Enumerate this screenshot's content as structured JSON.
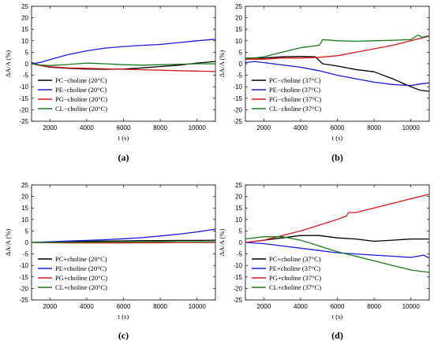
{
  "chart_data": [
    {
      "type": "line",
      "panel_label": "(a)",
      "xlabel": "t (s)",
      "ylabel": "ΔA/A (%)",
      "xlim": [
        1000,
        11000
      ],
      "ylim": [
        -25,
        25
      ],
      "xticks": [
        2000,
        4000,
        6000,
        8000,
        10000
      ],
      "yticks": [
        -25,
        -20,
        -15,
        -10,
        -5,
        0,
        5,
        10,
        15,
        20,
        25
      ],
      "legend_position": "bottom-left",
      "series": [
        {
          "name": "PC−choline (20°C)",
          "color": "#000000",
          "x": [
            1000,
            1500,
            2000,
            3000,
            4000,
            5000,
            6000,
            7000,
            8000,
            9000,
            10000,
            11000
          ],
          "y": [
            0.5,
            -0.8,
            -1.5,
            -2.0,
            -2.3,
            -2.4,
            -2.3,
            -1.8,
            -1.2,
            -0.6,
            0.3,
            1.0
          ]
        },
        {
          "name": "PE−choline (20°C)",
          "color": "#1a1adc",
          "x": [
            1000,
            1500,
            2000,
            3000,
            4000,
            5000,
            6000,
            7000,
            8000,
            9000,
            10000,
            11000
          ],
          "y": [
            0.0,
            0.6,
            1.8,
            4.0,
            5.6,
            6.8,
            7.5,
            8.0,
            8.4,
            9.2,
            10.0,
            10.7
          ]
        },
        {
          "name": "PG−choline (20°C)",
          "color": "#d81818",
          "x": [
            1000,
            1500,
            2000,
            3000,
            4000,
            5000,
            6000,
            7000,
            8000,
            9000,
            10000,
            11000
          ],
          "y": [
            0.0,
            -0.8,
            -1.3,
            -1.8,
            -2.0,
            -2.2,
            -2.4,
            -2.6,
            -2.8,
            -3.0,
            -3.2,
            -3.4
          ]
        },
        {
          "name": "CL−choline (20°C)",
          "color": "#1a7a1a",
          "x": [
            1000,
            1500,
            2000,
            3000,
            4000,
            5000,
            6000,
            7000,
            8000,
            9000,
            10000,
            11000
          ],
          "y": [
            0.0,
            -0.5,
            -0.8,
            -0.3,
            0.3,
            0.0,
            -0.4,
            -0.6,
            -0.4,
            -0.2,
            0.0,
            0.0
          ]
        }
      ]
    },
    {
      "type": "line",
      "panel_label": "(b)",
      "xlabel": "t (s)",
      "ylabel": "ΔA/A (%)",
      "xlim": [
        1000,
        11000
      ],
      "ylim": [
        -25,
        25
      ],
      "xticks": [
        2000,
        4000,
        6000,
        8000,
        10000
      ],
      "yticks": [
        -25,
        -20,
        -15,
        -10,
        -5,
        0,
        5,
        10,
        15,
        20,
        25
      ],
      "legend_position": "bottom-left",
      "series": [
        {
          "name": "PC−choline (37°C)",
          "color": "#000000",
          "x": [
            1000,
            1500,
            2000,
            3000,
            4000,
            4800,
            5200,
            6000,
            7000,
            8000,
            9000,
            10000,
            10500,
            11000
          ],
          "y": [
            2.0,
            2.5,
            2.5,
            3.0,
            3.2,
            3.0,
            0.0,
            -1.0,
            -2.5,
            -3.5,
            -6.5,
            -10.0,
            -11.5,
            -12.0
          ]
        },
        {
          "name": "PE−choline (37°C)",
          "color": "#1a1adc",
          "x": [
            1000,
            1500,
            2000,
            3000,
            4000,
            5000,
            6000,
            7000,
            8000,
            9000,
            10000,
            10500,
            11000
          ],
          "y": [
            0.5,
            1.0,
            0.5,
            -0.5,
            -1.5,
            -3.0,
            -5.0,
            -6.5,
            -8.0,
            -9.0,
            -9.5,
            -8.8,
            -8.3
          ]
        },
        {
          "name": "PG−choline (37°C)",
          "color": "#d81818",
          "x": [
            1000,
            1500,
            2000,
            3000,
            4000,
            5000,
            6000,
            7000,
            8000,
            9000,
            10000,
            11000
          ],
          "y": [
            2.0,
            2.0,
            2.0,
            2.5,
            2.5,
            2.8,
            3.5,
            5.0,
            6.5,
            8.0,
            10.0,
            12.0
          ]
        },
        {
          "name": "CL−choline (37°C)",
          "color": "#1a7a1a",
          "x": [
            1000,
            1500,
            2000,
            3000,
            4000,
            5000,
            5100,
            5200,
            6000,
            7000,
            8000,
            9000,
            10000,
            10400,
            10600,
            11000
          ],
          "y": [
            2.5,
            2.5,
            3.0,
            5.0,
            7.0,
            8.0,
            9.0,
            10.5,
            10.0,
            9.8,
            10.0,
            10.2,
            10.5,
            12.5,
            11.5,
            12.2
          ]
        }
      ]
    },
    {
      "type": "line",
      "panel_label": "(c)",
      "xlabel": "t (s)",
      "ylabel": "ΔA/A (%)",
      "xlim": [
        1000,
        11000
      ],
      "ylim": [
        -25,
        25
      ],
      "xticks": [
        2000,
        4000,
        6000,
        8000,
        10000
      ],
      "yticks": [
        -25,
        -20,
        -15,
        -10,
        -5,
        0,
        5,
        10,
        15,
        20,
        25
      ],
      "legend_position": "bottom-left",
      "series": [
        {
          "name": "PC+choline (20°C)",
          "color": "#000000",
          "x": [
            1000,
            2000,
            3000,
            4000,
            5000,
            6000,
            7000,
            8000,
            9000,
            10000,
            11000
          ],
          "y": [
            0.0,
            0.2,
            0.4,
            0.5,
            0.6,
            0.7,
            0.8,
            0.8,
            0.9,
            0.9,
            1.0
          ]
        },
        {
          "name": "PE+choline (20°C)",
          "color": "#1a1adc",
          "x": [
            1000,
            2000,
            3000,
            4000,
            5000,
            6000,
            7000,
            8000,
            9000,
            10000,
            11000
          ],
          "y": [
            0.0,
            0.3,
            0.6,
            0.9,
            1.2,
            1.6,
            2.1,
            2.8,
            3.6,
            4.6,
            5.8
          ]
        },
        {
          "name": "PG+choline (20°C)",
          "color": "#d81818",
          "x": [
            1000,
            2000,
            3000,
            4000,
            5000,
            6000,
            7000,
            8000,
            9000,
            10000,
            11000
          ],
          "y": [
            0.0,
            -0.1,
            -0.2,
            -0.2,
            -0.2,
            -0.2,
            -0.1,
            -0.1,
            0.0,
            0.0,
            0.0
          ]
        },
        {
          "name": "CL+choline (20°C)",
          "color": "#1a7a1a",
          "x": [
            1000,
            2000,
            3000,
            4000,
            5000,
            6000,
            7000,
            8000,
            9000,
            10000,
            11000
          ],
          "y": [
            0.0,
            0.0,
            0.1,
            0.1,
            0.2,
            0.2,
            0.2,
            0.3,
            0.3,
            0.3,
            0.3
          ]
        }
      ]
    },
    {
      "type": "line",
      "panel_label": "(d)",
      "xlabel": "t (s)",
      "ylabel": "ΔA/A (%)",
      "xlim": [
        1000,
        11000
      ],
      "ylim": [
        -25,
        25
      ],
      "xticks": [
        2000,
        4000,
        6000,
        8000,
        10000
      ],
      "yticks": [
        -25,
        -20,
        -15,
        -10,
        -5,
        0,
        5,
        10,
        15,
        20,
        25
      ],
      "legend_position": "bottom-left",
      "series": [
        {
          "name": "PC+choline (37°C)",
          "color": "#000000",
          "x": [
            1000,
            2000,
            3000,
            4000,
            5000,
            6000,
            7000,
            8000,
            9000,
            10000,
            11000
          ],
          "y": [
            0.0,
            1.0,
            2.0,
            3.0,
            3.0,
            2.0,
            1.5,
            0.5,
            1.0,
            1.5,
            1.5
          ]
        },
        {
          "name": "PE+choline (37°C)",
          "color": "#1a1adc",
          "x": [
            1000,
            2000,
            3000,
            4000,
            5000,
            6000,
            7000,
            8000,
            9000,
            10000,
            10700,
            11000
          ],
          "y": [
            0.0,
            -0.5,
            -1.5,
            -2.5,
            -3.5,
            -4.5,
            -5.0,
            -5.5,
            -6.0,
            -6.5,
            -5.5,
            -6.8
          ]
        },
        {
          "name": "PG+choline (37°C)",
          "color": "#d81818",
          "x": [
            1000,
            2000,
            3000,
            4000,
            5000,
            6000,
            6500,
            6600,
            7000,
            8000,
            9000,
            10000,
            11000
          ],
          "y": [
            0.0,
            1.0,
            3.0,
            5.0,
            7.5,
            10.0,
            11.5,
            13.0,
            13.0,
            15.0,
            17.0,
            19.0,
            21.0
          ]
        },
        {
          "name": "CL+choline (37°C)",
          "color": "#1a7a1a",
          "x": [
            1000,
            2000,
            3000,
            4000,
            5000,
            6000,
            7000,
            8000,
            9000,
            10000,
            11000
          ],
          "y": [
            1.5,
            2.5,
            2.5,
            1.0,
            -1.5,
            -4.0,
            -6.0,
            -8.0,
            -10.0,
            -12.0,
            -13.0
          ]
        }
      ]
    }
  ]
}
